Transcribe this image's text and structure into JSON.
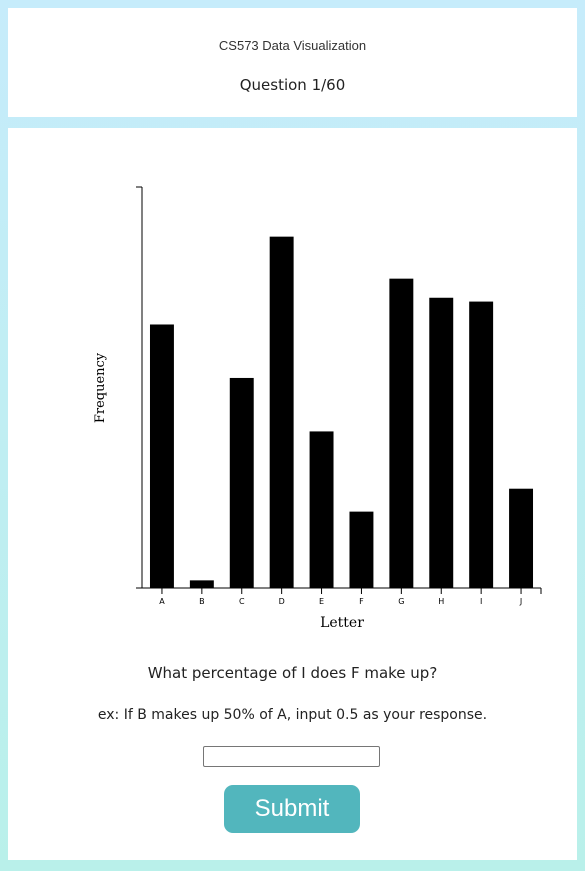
{
  "header": {
    "course_title": "CS573 Data Visualization",
    "question_counter": "Question 1/60"
  },
  "chart_data": {
    "type": "bar",
    "categories": [
      "A",
      "B",
      "C",
      "D",
      "E",
      "F",
      "G",
      "H",
      "I",
      "J"
    ],
    "values": [
      69,
      2,
      55,
      92,
      41,
      20,
      81,
      76,
      75,
      26
    ],
    "xlabel": "Letter",
    "ylabel": "Frequency",
    "ylim": [
      0,
      105
    ],
    "bar_color": "#000000",
    "grid": false
  },
  "question": {
    "prompt": "What percentage of I does F make up?",
    "example": "ex: If B makes up 50% of A, input 0.5 as your response.",
    "answer_value": "",
    "submit_label": "Submit",
    "submit_color": "#52b6bd"
  }
}
